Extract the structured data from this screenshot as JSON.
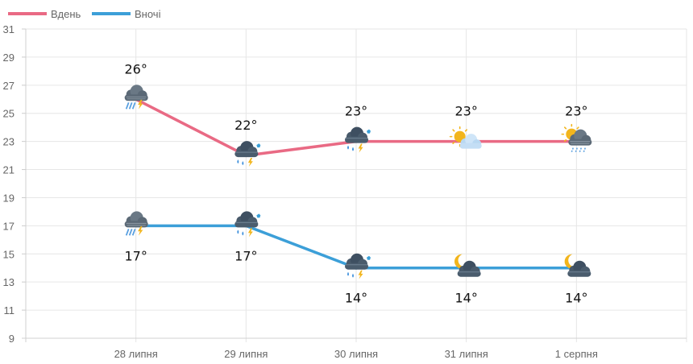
{
  "chart_data": {
    "type": "line",
    "categories": [
      "28 липня",
      "29 липня",
      "30 липня",
      "31 липня",
      "1 серпня"
    ],
    "series": [
      {
        "name": "Вдень",
        "color": "#e96a84",
        "values": [
          26,
          22,
          23,
          23,
          23
        ],
        "labels": [
          "26°",
          "22°",
          "23°",
          "23°",
          "23°"
        ],
        "icons": [
          "rain-thunder-icon",
          "storm-rain-icon",
          "storm-rain-icon",
          "sun-cloud-icon",
          "sun-rain-icon"
        ]
      },
      {
        "name": "Вночі",
        "color": "#3c9fd8",
        "values": [
          17,
          17,
          14,
          14,
          14
        ],
        "labels": [
          "17°",
          "17°",
          "14°",
          "14°",
          "14°"
        ],
        "icons": [
          "rain-thunder-icon",
          "storm-rain-icon",
          "storm-rain-icon",
          "moon-cloud-icon",
          "moon-cloud-icon"
        ]
      }
    ],
    "y_ticks": [
      "9",
      "11",
      "13",
      "15",
      "17",
      "19",
      "21",
      "23",
      "25",
      "27",
      "29",
      "31"
    ],
    "ylim": [
      9,
      31
    ],
    "grid": true,
    "legend": "top-left",
    "title": "",
    "xlabel": "",
    "ylabel": ""
  }
}
